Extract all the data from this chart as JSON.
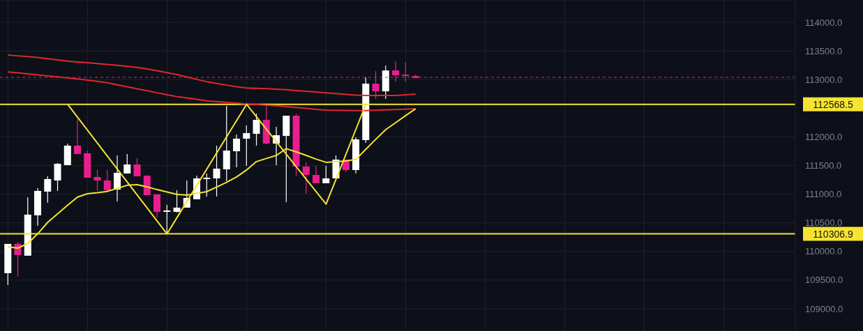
{
  "chart_data": {
    "type": "candlestick",
    "categories": [
      null,
      null,
      null,
      null,
      null,
      null,
      null,
      null,
      null,
      null,
      null,
      null,
      null,
      null,
      null,
      null,
      null,
      null,
      null,
      null,
      null,
      null,
      null,
      null,
      null,
      null,
      null,
      null,
      null,
      null,
      null,
      null,
      null,
      null,
      null,
      null,
      null,
      null,
      null,
      null,
      null,
      null
    ],
    "ohlc": [
      [
        109620,
        110131,
        109414,
        110131
      ],
      [
        110131,
        110168,
        109560,
        109937
      ],
      [
        109925,
        110946,
        109925,
        110642
      ],
      [
        110630,
        111105,
        110448,
        111056
      ],
      [
        111044,
        111311,
        110849,
        111263
      ],
      [
        111238,
        111542,
        111056,
        111530
      ],
      [
        111506,
        111883,
        111506,
        111847
      ],
      [
        111847,
        112309,
        111701,
        111701
      ],
      [
        111713,
        111761,
        111287,
        111287
      ],
      [
        111299,
        111433,
        111056,
        111238
      ],
      [
        111238,
        111421,
        111056,
        111068
      ],
      [
        111080,
        111676,
        110873,
        111372
      ],
      [
        111360,
        111701,
        111360,
        111518
      ],
      [
        111518,
        111628,
        111311,
        111311
      ],
      [
        111323,
        111323,
        110983,
        110983
      ],
      [
        110995,
        110995,
        110594,
        110691
      ],
      [
        110691,
        110813,
        110314,
        110715
      ],
      [
        110691,
        111068,
        110679,
        110764
      ],
      [
        110764,
        111238,
        110764,
        110934
      ],
      [
        110910,
        111323,
        110910,
        111275
      ],
      [
        111263,
        111360,
        110958,
        111287
      ],
      [
        111275,
        111847,
        110958,
        111445
      ],
      [
        111433,
        112540,
        111226,
        111761
      ],
      [
        111749,
        112041,
        111469,
        111968
      ],
      [
        111968,
        112199,
        111494,
        112066
      ],
      [
        112053,
        112406,
        111847,
        112297
      ],
      [
        112297,
        112540,
        111871,
        111883
      ],
      [
        111883,
        112175,
        111506,
        112029
      ],
      [
        112017,
        112370,
        110861,
        112370
      ],
      [
        112370,
        112406,
        111323,
        111482
      ],
      [
        111482,
        111555,
        111007,
        111336
      ],
      [
        111336,
        111494,
        111190,
        111190
      ],
      [
        111190,
        111494,
        111190,
        111275
      ],
      [
        111275,
        111676,
        111275,
        111603
      ],
      [
        111603,
        111603,
        111384,
        111421
      ],
      [
        111421,
        111993,
        111360,
        111956
      ],
      [
        111944,
        113039,
        111895,
        112929
      ],
      [
        112929,
        113148,
        112662,
        112795
      ],
      [
        112795,
        113245,
        112662,
        113160
      ],
      [
        113160,
        113318,
        112966,
        113075
      ],
      [
        113087,
        113306,
        112966,
        113063
      ],
      [
        113063,
        113087,
        113027,
        113027
      ]
    ],
    "colors": [
      "#ffffff",
      "#e91e8c",
      "#ffffff",
      "#ffffff",
      "#ffffff",
      "#ffffff",
      "#ffffff",
      "#e91e8c",
      "#e91e8c",
      "#e91e8c",
      "#e91e8c",
      "#ffffff",
      "#ffffff",
      "#e91e8c",
      "#e91e8c",
      "#e91e8c",
      "#ffffff",
      "#ffffff",
      "#ffffff",
      "#ffffff",
      "#ffffff",
      "#ffffff",
      "#ffffff",
      "#ffffff",
      "#ffffff",
      "#ffffff",
      "#e91e8c",
      "#ffffff",
      "#ffffff",
      "#e91e8c",
      "#e91e8c",
      "#e91e8c",
      "#ffffff",
      "#ffffff",
      "#e91e8c",
      "#ffffff",
      "#ffffff",
      "#e91e8c",
      "#ffffff",
      "#e91e8c",
      "#e91e8c",
      "#e91e8c"
    ],
    "series": [
      {
        "type": "line",
        "color": "#e3262e",
        "values": [
          113429,
          113415,
          113402,
          113386,
          113365,
          113344,
          113323,
          113308,
          113294,
          113280,
          113265,
          113248,
          113230,
          113213,
          113185,
          113154,
          113122,
          113088,
          113046,
          113004,
          112962,
          112932,
          112904,
          112876,
          112855,
          112848,
          112841,
          112833,
          112822,
          112809,
          112796,
          112783,
          112769,
          112756,
          112742,
          112728,
          112723,
          112723,
          112723,
          112724,
          112736,
          112747
        ]
      },
      {
        "type": "line",
        "color": "#e3262e",
        "values": [
          113135,
          113117,
          113100,
          113082,
          113065,
          113048,
          113031,
          113011,
          112990,
          112969,
          112944,
          112909,
          112874,
          112839,
          112805,
          112770,
          112735,
          112703,
          112679,
          112655,
          112630,
          112615,
          112602,
          112589,
          112575,
          112564,
          112553,
          112542,
          112528,
          112513,
          112497,
          112481,
          112466,
          112463,
          112460,
          112457,
          112458,
          112464,
          112471,
          112478,
          112484,
          112491
        ]
      },
      {
        "type": "line",
        "color": "#f5e431",
        "values": [
          110080,
          110058,
          110137,
          110310,
          110508,
          110656,
          110805,
          110950,
          111008,
          111026,
          111048,
          111102,
          111155,
          111165,
          111127,
          111079,
          111038,
          110996,
          110982,
          111013,
          111044,
          111124,
          111207,
          111301,
          111422,
          111569,
          111623,
          111676,
          111794,
          111738,
          111676,
          111611,
          111556,
          111568,
          111580,
          111608,
          111782,
          111958,
          112126,
          112249,
          112371,
          112491
        ]
      },
      {
        "type": "line",
        "color": "#f5e431",
        "values": [
          null,
          null,
          null,
          null,
          null,
          null,
          112568.5,
          null,
          null,
          null,
          null,
          null,
          null,
          null,
          null,
          null,
          110306.9,
          null,
          null,
          null,
          null,
          null,
          null,
          null,
          112568.5,
          null,
          null,
          null,
          null,
          null,
          null,
          null,
          110825,
          null,
          null,
          null,
          112568.5,
          null,
          null,
          null,
          null,
          null
        ]
      }
    ],
    "ylim": [
      108610,
      114390
    ],
    "yticks": [
      {
        "value": 109000,
        "label": "109000.0"
      },
      {
        "value": 109500,
        "label": "109500.0"
      },
      {
        "value": 110000,
        "label": "110000.0"
      },
      {
        "value": 110500,
        "label": "110500.0"
      },
      {
        "value": 111000,
        "label": "111000.0"
      },
      {
        "value": 111500,
        "label": "111500.0"
      },
      {
        "value": 112000,
        "label": "112000.0"
      },
      {
        "value": 113000,
        "label": "113000.0"
      },
      {
        "value": 113500,
        "label": "113500.0"
      },
      {
        "value": 114000,
        "label": "114000.0"
      }
    ],
    "grid": true,
    "tick_labels": "y",
    "ref_lines": [
      {
        "axis": "y",
        "value": 112568.5,
        "label": "112568.5",
        "color": "#f5e431",
        "line_style": "solid"
      },
      {
        "axis": "y",
        "value": 110306.9,
        "label": "110306.9",
        "color": "#f5e431",
        "line_style": "solid"
      },
      {
        "axis": "y",
        "value": 113039,
        "color": "#e91e8c",
        "line_style": "dashed"
      }
    ]
  }
}
